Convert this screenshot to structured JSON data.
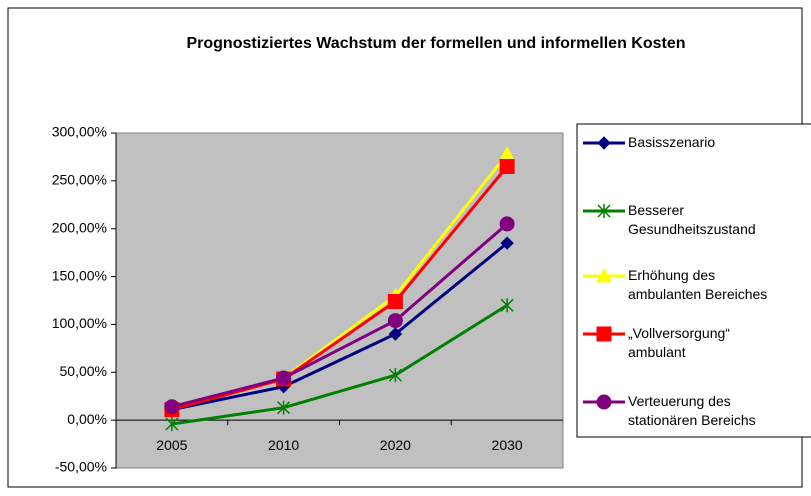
{
  "chart_data": {
    "type": "line",
    "title": "Prognostiziertes Wachstum der formellen und informellen Kosten",
    "categories": [
      "2005",
      "2010",
      "2020",
      "2030"
    ],
    "ylim": [
      -50,
      300
    ],
    "yticks": [
      {
        "value": -50,
        "label": "-50,00%"
      },
      {
        "value": 0,
        "label": "0,00%"
      },
      {
        "value": 50,
        "label": "50,00%"
      },
      {
        "value": 100,
        "label": "100,00%"
      },
      {
        "value": 150,
        "label": "150,00%"
      },
      {
        "value": 200,
        "label": "200,00%"
      },
      {
        "value": 250,
        "label": "250,00%"
      },
      {
        "value": 300,
        "label": "300,00%"
      }
    ],
    "grid": false,
    "legend": "right",
    "series": [
      {
        "name": "Basisszenario",
        "color": "#000080",
        "marker": "diamond",
        "values": [
          11,
          35,
          90,
          185
        ]
      },
      {
        "name": "Besserer Gesundheitszustand",
        "color": "#008000",
        "marker": "asterisk",
        "values": [
          -4,
          13,
          47,
          120
        ]
      },
      {
        "name": "Erhöhung des ambulanten Bereiches",
        "color": "#ffff00",
        "marker": "triangle",
        "values": [
          12,
          44,
          130,
          278
        ]
      },
      {
        "name": "„Vollversorgung“ ambulant",
        "color": "#ff0000",
        "marker": "square",
        "values": [
          11,
          43,
          124,
          265
        ]
      },
      {
        "name": "Verteuerung des stationären Bereichs",
        "color": "#800080",
        "marker": "circle",
        "values": [
          14,
          44,
          104,
          205
        ]
      }
    ]
  }
}
